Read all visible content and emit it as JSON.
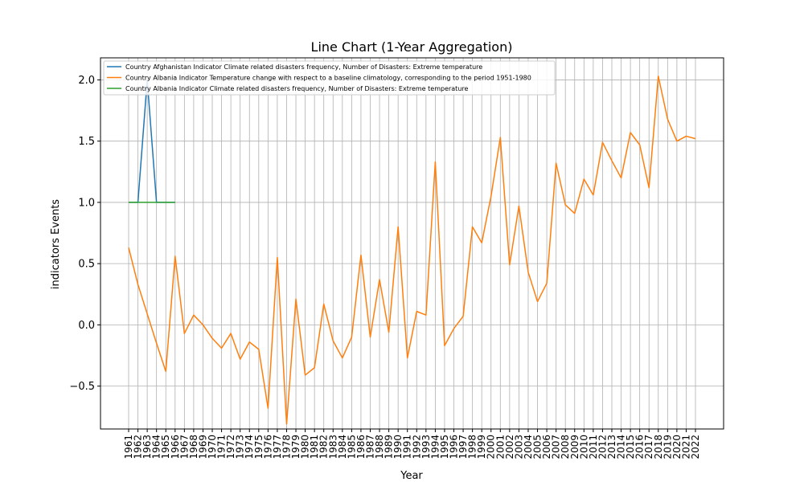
{
  "chart_data": {
    "type": "line",
    "title": "Line Chart (1-Year Aggregation)",
    "xlabel": "Year",
    "ylabel": "indicators Events",
    "ylim": [
      -0.85,
      2.18
    ],
    "yticks": [
      "2.0",
      "1.5",
      "1.0",
      "0.5",
      "0.0",
      "−0.5"
    ],
    "ytick_values": [
      2.0,
      1.5,
      1.0,
      0.5,
      0.0,
      -0.5
    ],
    "x": [
      "1961",
      "1962",
      "1963",
      "1964",
      "1965",
      "1966",
      "1967",
      "1968",
      "1969",
      "1970",
      "1971",
      "1972",
      "1973",
      "1974",
      "1975",
      "1976",
      "1977",
      "1978",
      "1979",
      "1980",
      "1981",
      "1982",
      "1983",
      "1984",
      "1985",
      "1986",
      "1987",
      "1988",
      "1989",
      "1990",
      "1991",
      "1992",
      "1993",
      "1994",
      "1995",
      "1996",
      "1997",
      "1998",
      "1999",
      "2000",
      "2001",
      "2002",
      "2003",
      "2004",
      "2005",
      "2006",
      "2007",
      "2008",
      "2009",
      "2010",
      "2011",
      "2012",
      "2013",
      "2014",
      "2015",
      "2016",
      "2017",
      "2018",
      "2019",
      "2020",
      "2021",
      "2022"
    ],
    "grid": true,
    "legend_position": "top-left",
    "series": [
      {
        "name": "Country Afghanistan Indicator Climate related disasters frequency, Number of Disasters: Extreme temperature",
        "color": "#1f77b4",
        "x": [
          "1961",
          "1962",
          "1963",
          "1964",
          "1965",
          "1966"
        ],
        "values": [
          1,
          1,
          2,
          1,
          1,
          1
        ]
      },
      {
        "name": "Country Albania Indicator Temperature change with respect to a baseline climatology, corresponding to the period 1951-1980",
        "color": "#ff7f0e",
        "x": [
          "1961",
          "1962",
          "1963",
          "1964",
          "1965",
          "1966",
          "1967",
          "1968",
          "1969",
          "1970",
          "1971",
          "1972",
          "1973",
          "1974",
          "1975",
          "1976",
          "1977",
          "1978",
          "1979",
          "1980",
          "1981",
          "1982",
          "1983",
          "1984",
          "1985",
          "1986",
          "1987",
          "1988",
          "1989",
          "1990",
          "1991",
          "1992",
          "1993",
          "1994",
          "1995",
          "1996",
          "1997",
          "1998",
          "1999",
          "2000",
          "2001",
          "2002",
          "2003",
          "2004",
          "2005",
          "2006",
          "2007",
          "2008",
          "2009",
          "2010",
          "2011",
          "2012",
          "2013",
          "2014",
          "2015",
          "2016",
          "2017",
          "2018",
          "2019",
          "2020",
          "2021",
          "2022"
        ],
        "values": [
          0.63,
          0.33,
          0.09,
          -0.15,
          -0.38,
          0.56,
          -0.07,
          0.08,
          0.0,
          -0.11,
          -0.19,
          -0.07,
          -0.28,
          -0.14,
          -0.2,
          -0.68,
          0.55,
          -0.81,
          0.21,
          -0.41,
          -0.35,
          0.17,
          -0.13,
          -0.27,
          -0.1,
          0.57,
          -0.1,
          0.37,
          -0.06,
          0.8,
          -0.27,
          0.11,
          0.08,
          1.33,
          -0.17,
          -0.03,
          0.07,
          0.8,
          0.67,
          1.05,
          1.53,
          0.49,
          0.97,
          0.43,
          0.19,
          0.34,
          1.32,
          0.98,
          0.91,
          1.19,
          1.06,
          1.49,
          1.34,
          1.2,
          1.57,
          1.47,
          1.12,
          2.03,
          1.68,
          1.5,
          1.54,
          1.52
        ]
      },
      {
        "name": "Country Albania Indicator Climate related disasters frequency, Number of Disasters: Extreme temperature",
        "color": "#2ca02c",
        "x": [
          "1961",
          "1962",
          "1963",
          "1964",
          "1965",
          "1966"
        ],
        "values": [
          1,
          1,
          1,
          1,
          1,
          1
        ]
      }
    ]
  }
}
